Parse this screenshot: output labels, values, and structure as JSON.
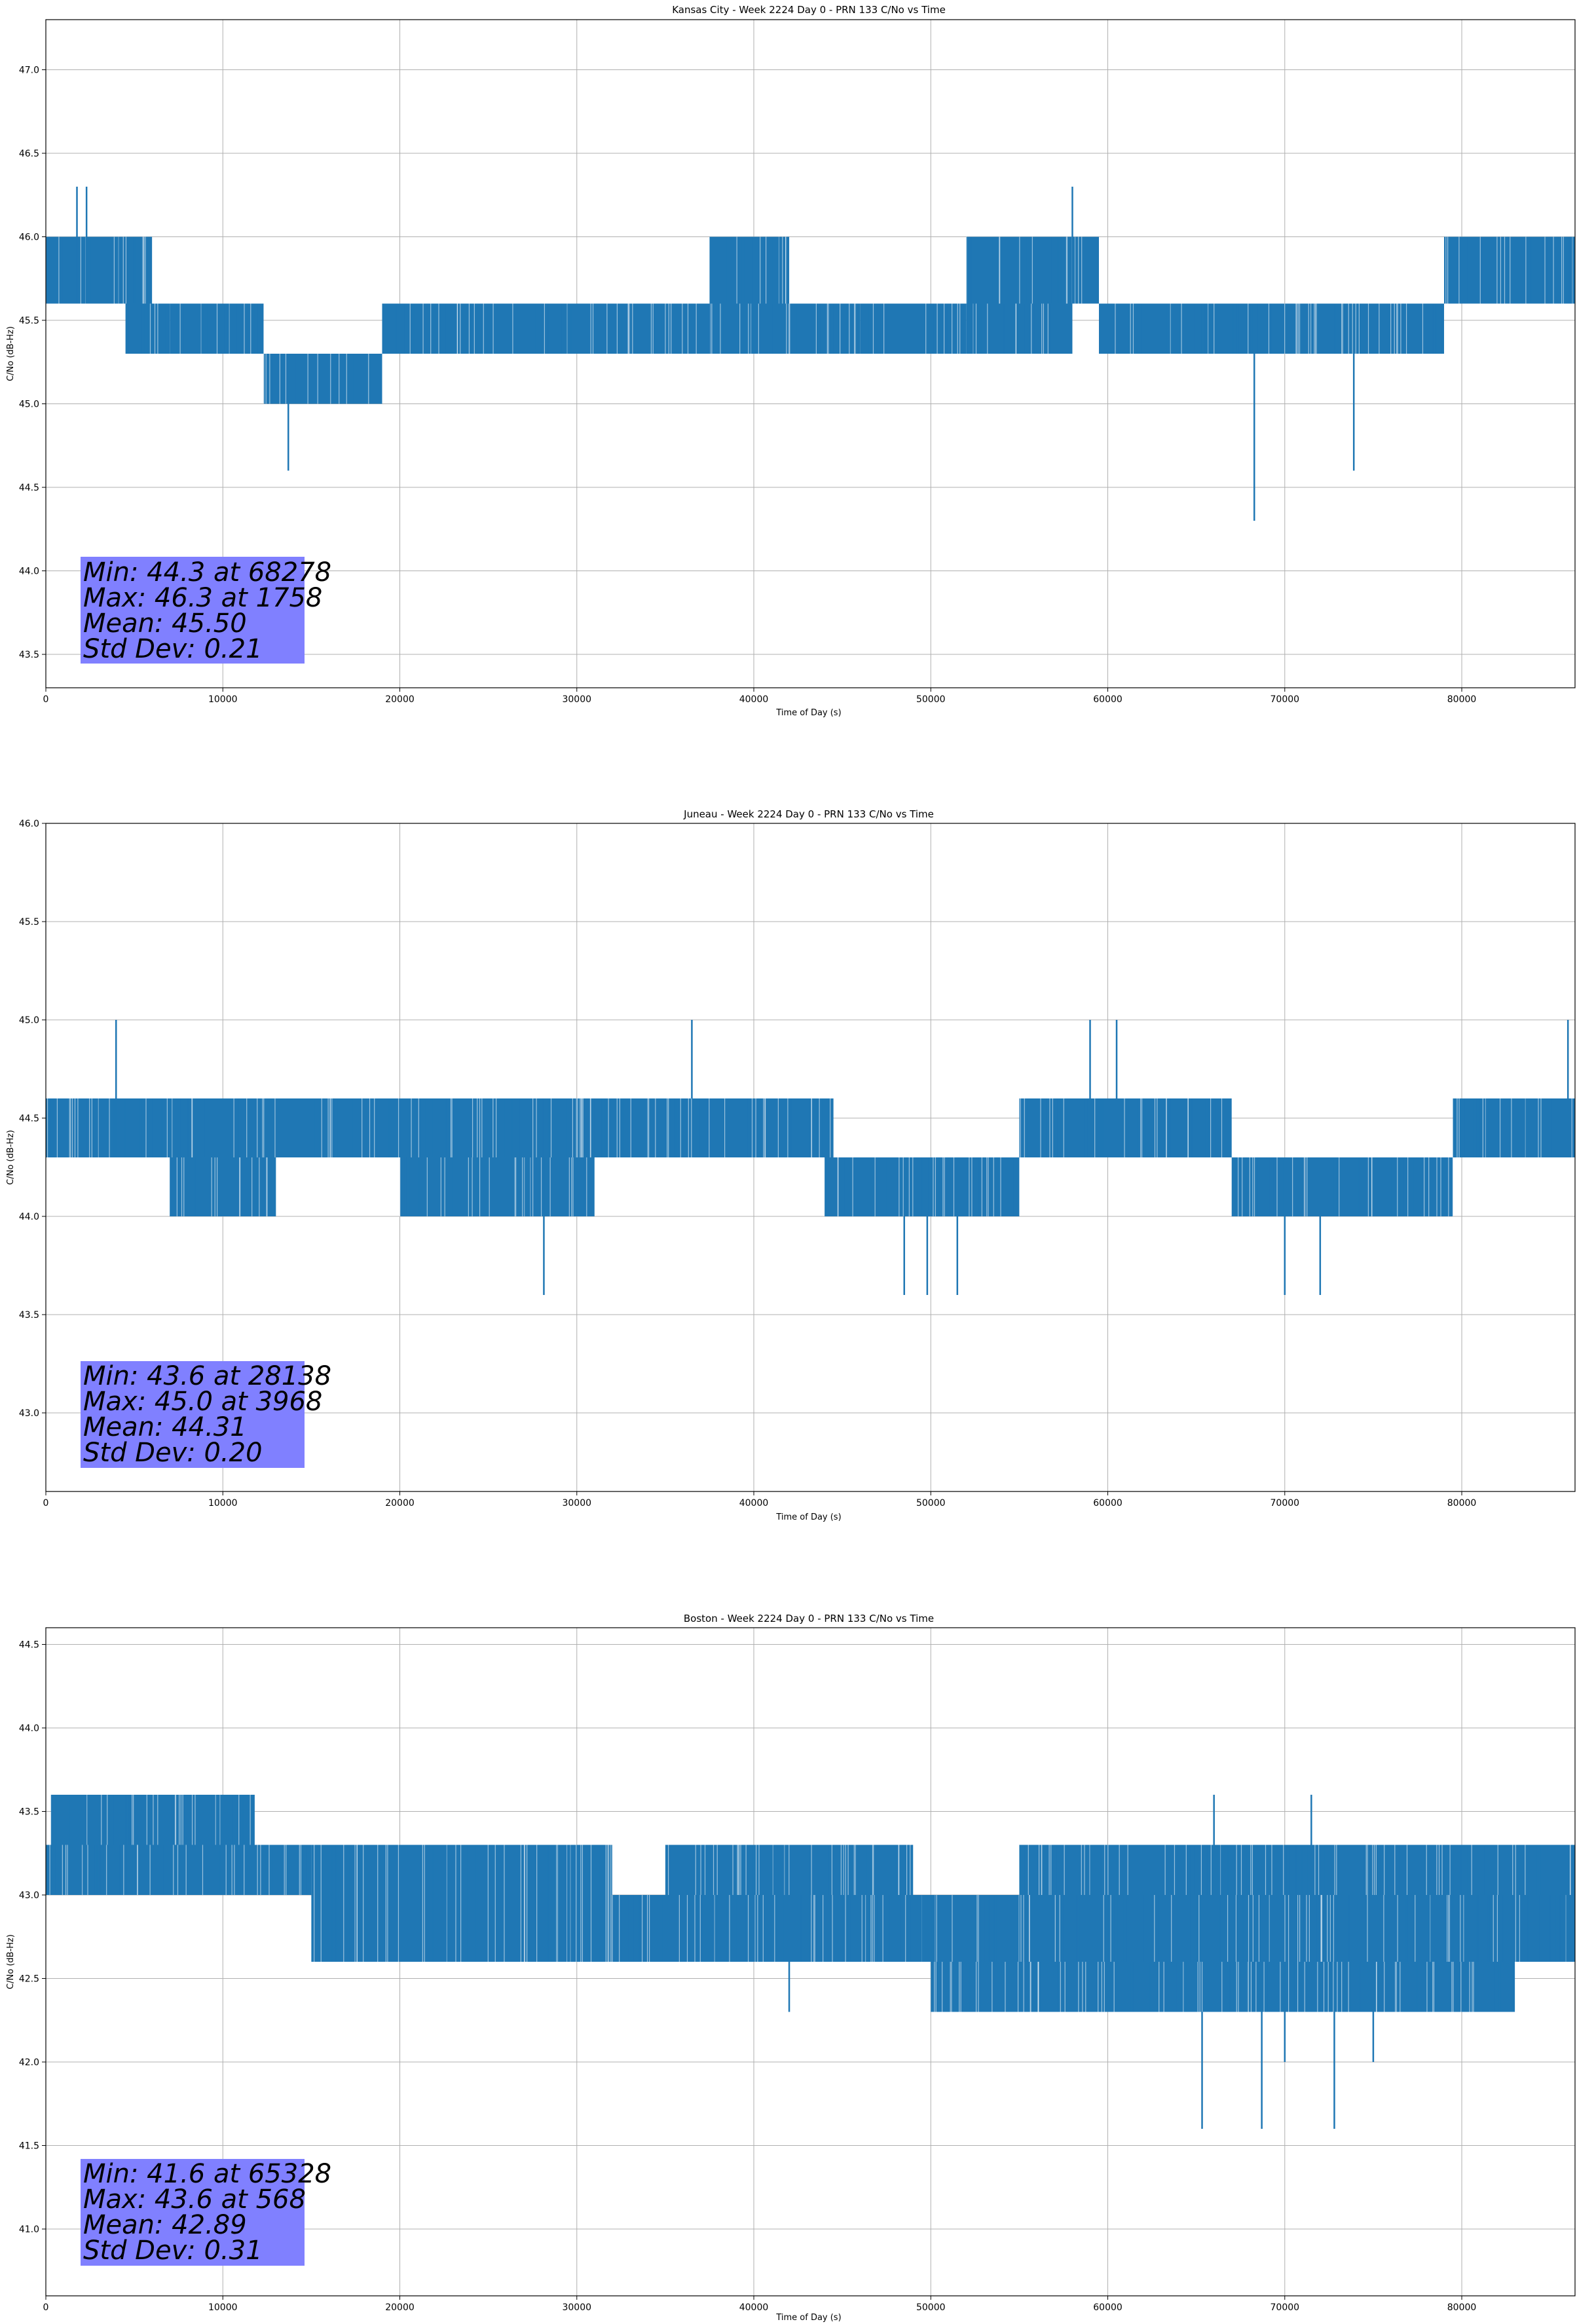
{
  "figure": {
    "background": "#ffffff",
    "line_color": "#1f77b4",
    "stats_box_color": "#8080ff",
    "grid_color": "#b0b0b0"
  },
  "chart_data": [
    {
      "type": "line",
      "title": "Kansas City - Week 2224 Day 0 - PRN 133 C/No vs Time",
      "xlabel": "Time of Day (s)",
      "ylabel": "C/No (dB-Hz)",
      "xlim": [
        0,
        86400
      ],
      "ylim": [
        43.3,
        47.3
      ],
      "xticks": [
        0,
        10000,
        20000,
        30000,
        40000,
        50000,
        60000,
        70000,
        80000
      ],
      "yticks": [
        "43.5",
        "44.0",
        "44.5",
        "45.0",
        "45.5",
        "46.0",
        "46.5",
        "47.0"
      ],
      "grid": true,
      "series": [
        {
          "color": "#1f77b4",
          "segments": [
            {
              "x0": 0,
              "x1": 6000,
              "low": 45.6,
              "high": 46.0
            },
            {
              "x0": 4500,
              "x1": 7000,
              "low": 45.3,
              "high": 45.6
            },
            {
              "x0": 7000,
              "x1": 12300,
              "low": 45.3,
              "high": 45.6
            },
            {
              "x0": 12300,
              "x1": 19000,
              "low": 45.0,
              "high": 45.3
            },
            {
              "x0": 19000,
              "x1": 40000,
              "low": 45.3,
              "high": 45.6
            },
            {
              "x0": 37500,
              "x1": 42000,
              "low": 45.6,
              "high": 46.0
            },
            {
              "x0": 40000,
              "x1": 46000,
              "low": 45.3,
              "high": 45.6
            },
            {
              "x0": 46000,
              "x1": 52000,
              "low": 45.3,
              "high": 45.6
            },
            {
              "x0": 52000,
              "x1": 58000,
              "low": 45.3,
              "high": 45.6
            },
            {
              "x0": 52000,
              "x1": 59500,
              "low": 45.6,
              "high": 46.0
            },
            {
              "x0": 59500,
              "x1": 79000,
              "low": 45.3,
              "high": 45.6
            },
            {
              "x0": 79000,
              "x1": 86400,
              "low": 45.6,
              "high": 46.0
            }
          ],
          "spikes": [
            {
              "x": 1758,
              "low": 45.6,
              "high": 46.3
            },
            {
              "x": 2300,
              "low": 45.6,
              "high": 46.3
            },
            {
              "x": 13700,
              "low": 44.6,
              "high": 45.3
            },
            {
              "x": 58000,
              "low": 45.6,
              "high": 46.3
            },
            {
              "x": 68278,
              "low": 44.3,
              "high": 45.3
            },
            {
              "x": 73900,
              "low": 44.6,
              "high": 45.3
            }
          ]
        }
      ],
      "stats": [
        "Min: 44.3 at 68278",
        "Max: 46.3 at 1758",
        "Mean: 45.50",
        "Std Dev: 0.21"
      ]
    },
    {
      "type": "line",
      "title": "Juneau - Week 2224 Day 0 - PRN 133 C/No vs Time",
      "xlabel": "Time of Day (s)",
      "ylabel": "C/No (dB-Hz)",
      "xlim": [
        0,
        86400
      ],
      "ylim": [
        42.6,
        46.0
      ],
      "xticks": [
        0,
        10000,
        20000,
        30000,
        40000,
        50000,
        60000,
        70000,
        80000
      ],
      "yticks": [
        "43.0",
        "43.5",
        "44.0",
        "44.5",
        "45.0",
        "45.5",
        "46.0"
      ],
      "grid": true,
      "series": [
        {
          "color": "#1f77b4",
          "segments": [
            {
              "x0": 0,
              "x1": 44500,
              "low": 44.3,
              "high": 44.6
            },
            {
              "x0": 7000,
              "x1": 13000,
              "low": 44.0,
              "high": 44.3
            },
            {
              "x0": 20000,
              "x1": 31000,
              "low": 44.0,
              "high": 44.3
            },
            {
              "x0": 31000,
              "x1": 44000,
              "low": 44.3,
              "high": 44.6
            },
            {
              "x0": 44000,
              "x1": 55000,
              "low": 44.0,
              "high": 44.3
            },
            {
              "x0": 55000,
              "x1": 67000,
              "low": 44.3,
              "high": 44.6
            },
            {
              "x0": 67000,
              "x1": 79500,
              "low": 44.0,
              "high": 44.3
            },
            {
              "x0": 79500,
              "x1": 86400,
              "low": 44.3,
              "high": 44.6
            }
          ],
          "spikes": [
            {
              "x": 3968,
              "low": 44.6,
              "high": 45.0
            },
            {
              "x": 28138,
              "low": 43.6,
              "high": 44.0
            },
            {
              "x": 36500,
              "low": 44.6,
              "high": 45.0
            },
            {
              "x": 48500,
              "low": 43.6,
              "high": 44.0
            },
            {
              "x": 49800,
              "low": 43.6,
              "high": 44.0
            },
            {
              "x": 51500,
              "low": 43.6,
              "high": 44.0
            },
            {
              "x": 59000,
              "low": 44.6,
              "high": 45.0
            },
            {
              "x": 60500,
              "low": 44.6,
              "high": 45.0
            },
            {
              "x": 70000,
              "low": 43.6,
              "high": 44.0
            },
            {
              "x": 72000,
              "low": 43.6,
              "high": 44.0
            },
            {
              "x": 86000,
              "low": 44.6,
              "high": 45.0
            }
          ]
        }
      ],
      "stats": [
        "Min: 43.6 at 28138",
        "Max: 45.0 at 3968",
        "Mean: 44.31",
        "Std Dev: 0.20"
      ]
    },
    {
      "type": "line",
      "title": "Boston - Week 2224 Day 0 - PRN 133 C/No vs Time",
      "xlabel": "Time of Day (s)",
      "ylabel": "C/No (dB-Hz)",
      "xlim": [
        0,
        86400
      ],
      "ylim": [
        40.6,
        44.6
      ],
      "xticks": [
        0,
        10000,
        20000,
        30000,
        40000,
        50000,
        60000,
        70000,
        80000
      ],
      "yticks": [
        "41.0",
        "41.5",
        "42.0",
        "42.5",
        "43.0",
        "43.5",
        "44.0",
        "44.5"
      ],
      "grid": true,
      "series": [
        {
          "color": "#1f77b4",
          "segments": [
            {
              "x0": 0,
              "x1": 15000,
              "low": 43.0,
              "high": 43.3
            },
            {
              "x0": 300,
              "x1": 11800,
              "low": 43.3,
              "high": 43.6
            },
            {
              "x0": 15000,
              "x1": 32000,
              "low": 42.6,
              "high": 43.3
            },
            {
              "x0": 32000,
              "x1": 49500,
              "low": 42.6,
              "high": 43.0
            },
            {
              "x0": 35000,
              "x1": 49000,
              "low": 43.0,
              "high": 43.3
            },
            {
              "x0": 49500,
              "x1": 86400,
              "low": 42.6,
              "high": 43.0
            },
            {
              "x0": 50000,
              "x1": 83000,
              "low": 42.3,
              "high": 42.6
            },
            {
              "x0": 55000,
              "x1": 86400,
              "low": 43.0,
              "high": 43.3
            }
          ],
          "spikes": [
            {
              "x": 568,
              "low": 43.3,
              "high": 43.6
            },
            {
              "x": 42000,
              "low": 42.3,
              "high": 42.6
            },
            {
              "x": 65328,
              "low": 41.6,
              "high": 42.3
            },
            {
              "x": 66000,
              "low": 43.3,
              "high": 43.6
            },
            {
              "x": 68700,
              "low": 41.6,
              "high": 42.3
            },
            {
              "x": 71500,
              "low": 43.3,
              "high": 43.6
            },
            {
              "x": 72800,
              "low": 41.6,
              "high": 42.3
            },
            {
              "x": 70000,
              "low": 42.0,
              "high": 42.3
            },
            {
              "x": 75000,
              "low": 42.0,
              "high": 42.3
            }
          ]
        }
      ],
      "stats": [
        "Min: 41.6 at 65328",
        "Max: 43.6 at 568",
        "Mean: 42.89",
        "Std Dev: 0.31"
      ]
    }
  ]
}
